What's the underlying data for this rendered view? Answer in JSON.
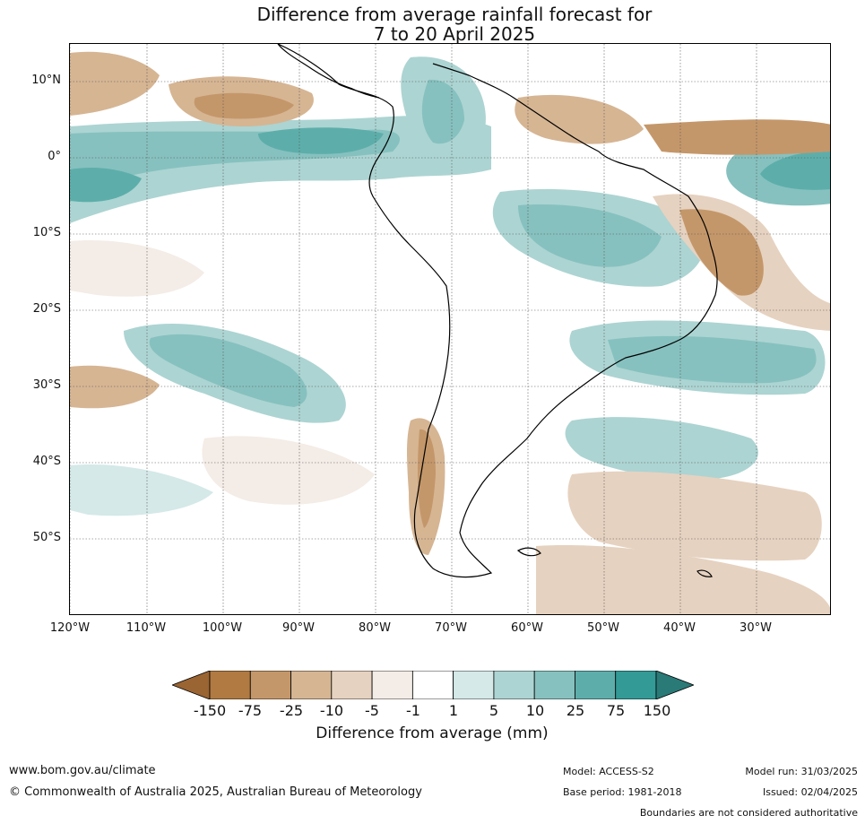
{
  "title_line1": "Difference from average rainfall forecast for",
  "title_line2": "7 to 20 April 2025",
  "lat_labels": [
    "10°N",
    "0°",
    "10°S",
    "20°S",
    "30°S",
    "40°S",
    "50°S"
  ],
  "lon_labels": [
    "120°W",
    "110°W",
    "100°W",
    "90°W",
    "80°W",
    "70°W",
    "60°W",
    "50°W",
    "40°W",
    "30°W"
  ],
  "colorbar": {
    "labels": [
      "-150",
      "-75",
      "-25",
      "-10",
      "-5",
      "-1",
      "1",
      "5",
      "10",
      "25",
      "75",
      "150"
    ],
    "colors": [
      "#9a6433",
      "#b07a42",
      "#c4976a",
      "#d6b593",
      "#e6d2c0",
      "#f4ece6",
      "#ffffff",
      "#d4e9e8",
      "#acd4d2",
      "#86c1bf",
      "#5daeab",
      "#339a96",
      "#2a7a77"
    ],
    "title": "Difference from average (mm)"
  },
  "footer": {
    "url": "www.bom.gov.au/climate",
    "copyright": "© Commonwealth of Australia 2025, Australian Bureau of Meteorology",
    "model": "Model: ACCESS-S2",
    "base_period": "Base period: 1981-2018",
    "model_run": "Model run: 31/03/2025",
    "issued": "Issued: 02/04/2025",
    "boundaries_note": "Boundaries are not considered authoritative"
  }
}
